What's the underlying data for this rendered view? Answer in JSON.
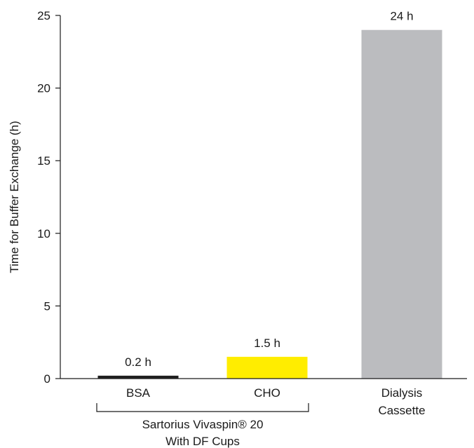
{
  "chart_data": {
    "type": "bar",
    "title": "",
    "xlabel": "",
    "ylabel": "Time for Buffer Exchange (h)",
    "ylim": [
      0,
      25
    ],
    "yticks": [
      0,
      5,
      10,
      15,
      20,
      25
    ],
    "ytick_labels": [
      "0",
      "5",
      "10",
      "15",
      "20",
      "25"
    ],
    "grid": false,
    "categories": [
      {
        "lines": [
          "BSA"
        ]
      },
      {
        "lines": [
          "CHO"
        ]
      },
      {
        "lines": [
          "Dialysis",
          "Cassette"
        ]
      }
    ],
    "values": [
      0.2,
      1.5,
      24
    ],
    "data_labels": [
      "0.2 h",
      "1.5 h",
      "24 h"
    ],
    "colors": [
      "#1f1f1f",
      "#ffed00",
      "#bbbcbf"
    ],
    "group": {
      "spans": [
        0,
        1
      ],
      "lines": [
        "Sartorius Vivaspin® 20",
        "With DF Cups"
      ]
    }
  }
}
